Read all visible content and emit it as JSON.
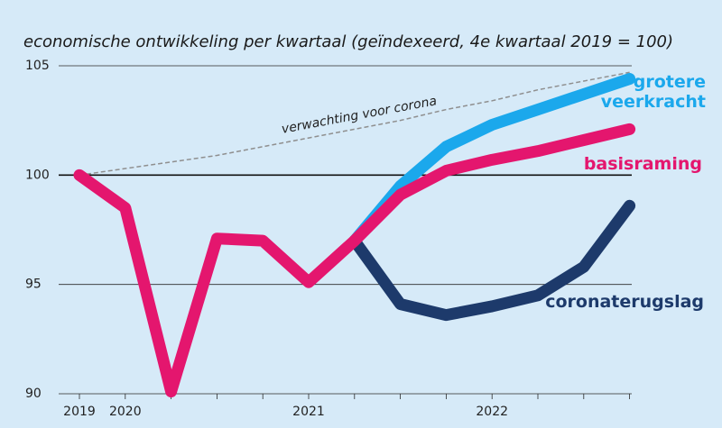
{
  "chart_data": {
    "type": "line",
    "title": "economische ontwikkeling per kwartaal (geïndexeerd, 4e kwartaal 2019 = 100)",
    "x": [
      "2019",
      "2020",
      null,
      null,
      null,
      "2021",
      null,
      null,
      null,
      "2022",
      null,
      null,
      null
    ],
    "ylim": [
      90,
      105
    ],
    "yticks": [
      90,
      95,
      100,
      105
    ],
    "grid": true,
    "series": [
      {
        "name": "verwachting voor corona",
        "color": "#8f8f8f",
        "style": "dashed",
        "values": [
          100,
          100.3,
          100.6,
          100.9,
          101.3,
          101.7,
          102.1,
          102.5,
          103.0,
          103.4,
          103.9,
          104.3,
          104.7
        ]
      },
      {
        "name": "grotere veerkracht",
        "color": "#1ba8ec",
        "values": [
          null,
          null,
          null,
          null,
          null,
          null,
          97.0,
          99.5,
          101.3,
          102.3,
          103.0,
          103.7,
          104.4
        ]
      },
      {
        "name": "coronaterugslag",
        "color": "#1d3a6b",
        "values": [
          null,
          null,
          null,
          null,
          null,
          null,
          97.0,
          94.1,
          93.6,
          94.0,
          94.5,
          95.8,
          98.6
        ]
      },
      {
        "name": "basisraming",
        "color": "#e4166e",
        "values": [
          100,
          98.5,
          90.1,
          97.1,
          97.0,
          95.1,
          97.0,
          99.1,
          100.2,
          100.7,
          101.1,
          101.6,
          102.1
        ]
      }
    ]
  }
}
